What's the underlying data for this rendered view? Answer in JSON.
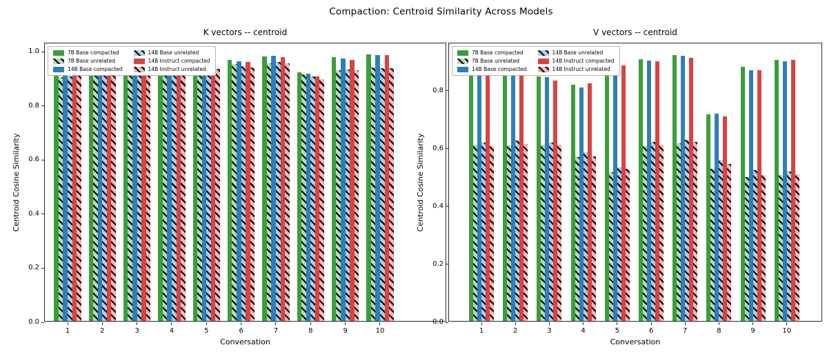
{
  "figure": {
    "suptitle": "Compaction: Centroid Similarity Across Models"
  },
  "styles": {
    "green-solid": {
      "fill": "#3a9e3a",
      "hatch": false
    },
    "green-hatched": {
      "fill": "#b7dcb7",
      "hatch": true
    },
    "blue-solid": {
      "fill": "#2e7ebc",
      "hatch": false
    },
    "blue-hatched": {
      "fill": "#aecfe8",
      "hatch": true
    },
    "red-solid": {
      "fill": "#d94343",
      "hatch": false
    },
    "red-hatched": {
      "fill": "#f4b6b9",
      "hatch": true
    }
  },
  "hatch_color": "#1a1a1a",
  "chart_data": [
    {
      "type": "bar",
      "title": "K vectors -- centroid",
      "xlabel": "Conversation",
      "ylabel": "Centroid Cosine Similarity",
      "categories": [
        "1",
        "2",
        "3",
        "4",
        "5",
        "6",
        "7",
        "8",
        "9",
        "10"
      ],
      "yticks": [
        "0.0",
        "0.2",
        "0.4",
        "0.6",
        "0.8",
        "1.0"
      ],
      "ylim": [
        0,
        1.031
      ],
      "grid": false,
      "legend_position": "upper left",
      "series": [
        {
          "name": "7B Base compacted",
          "style": "green-solid",
          "values": [
            0.918,
            0.921,
            0.923,
            0.923,
            0.974,
            0.966,
            0.978,
            0.919,
            0.975,
            0.985
          ]
        },
        {
          "name": "7B Base unrelated",
          "style": "green-hatched",
          "values": [
            0.901,
            0.913,
            0.917,
            0.913,
            0.932,
            0.95,
            0.953,
            0.911,
            0.927,
            0.936
          ]
        },
        {
          "name": "14B Base compacted",
          "style": "blue-solid",
          "values": [
            0.923,
            0.925,
            0.928,
            0.921,
            0.968,
            0.961,
            0.98,
            0.913,
            0.971,
            0.983
          ]
        },
        {
          "name": "14B Base unrelated",
          "style": "blue-hatched",
          "values": [
            0.904,
            0.914,
            0.919,
            0.911,
            0.93,
            0.943,
            0.957,
            0.904,
            0.93,
            0.934
          ]
        },
        {
          "name": "14B Instruct compacted",
          "style": "red-solid",
          "values": [
            0.921,
            0.923,
            0.921,
            0.919,
            0.97,
            0.956,
            0.976,
            0.904,
            0.966,
            0.982
          ]
        },
        {
          "name": "14B Instruct unrelated",
          "style": "red-hatched",
          "values": [
            0.906,
            0.913,
            0.917,
            0.913,
            0.933,
            0.938,
            0.952,
            0.893,
            0.927,
            0.934
          ]
        }
      ]
    },
    {
      "type": "bar",
      "title": "V vectors -- centroid",
      "xlabel": "Conversation",
      "ylabel": "Centroid Cosine Similarity",
      "categories": [
        "1",
        "2",
        "3",
        "4",
        "5",
        "6",
        "7",
        "8",
        "9",
        "10"
      ],
      "yticks": [
        "0.0",
        "0.2",
        "0.4",
        "0.6",
        "0.8"
      ],
      "ylim": [
        0,
        0.964
      ],
      "grid": false,
      "legend_position": "upper left",
      "series": [
        {
          "name": "7B Base compacted",
          "style": "green-solid",
          "values": [
            0.875,
            0.86,
            0.846,
            0.817,
            0.886,
            0.904,
            0.92,
            0.713,
            0.878,
            0.901
          ]
        },
        {
          "name": "7B Base unrelated",
          "style": "green-hatched",
          "values": [
            0.61,
            0.608,
            0.61,
            0.566,
            0.513,
            0.604,
            0.613,
            0.525,
            0.497,
            0.505
          ]
        },
        {
          "name": "14B Base compacted",
          "style": "blue-solid",
          "values": [
            0.88,
            0.854,
            0.842,
            0.806,
            0.88,
            0.899,
            0.916,
            0.717,
            0.867,
            0.898
          ]
        },
        {
          "name": "14B Base unrelated",
          "style": "blue-hatched",
          "values": [
            0.617,
            0.624,
            0.616,
            0.583,
            0.532,
            0.62,
            0.626,
            0.556,
            0.521,
            0.517
          ]
        },
        {
          "name": "14B Instruct compacted",
          "style": "red-solid",
          "values": [
            0.858,
            0.848,
            0.83,
            0.822,
            0.884,
            0.898,
            0.91,
            0.707,
            0.866,
            0.902
          ]
        },
        {
          "name": "14B Instruct unrelated",
          "style": "red-hatched",
          "values": [
            0.605,
            0.612,
            0.61,
            0.57,
            0.526,
            0.61,
            0.618,
            0.542,
            0.505,
            0.507
          ]
        }
      ]
    }
  ]
}
